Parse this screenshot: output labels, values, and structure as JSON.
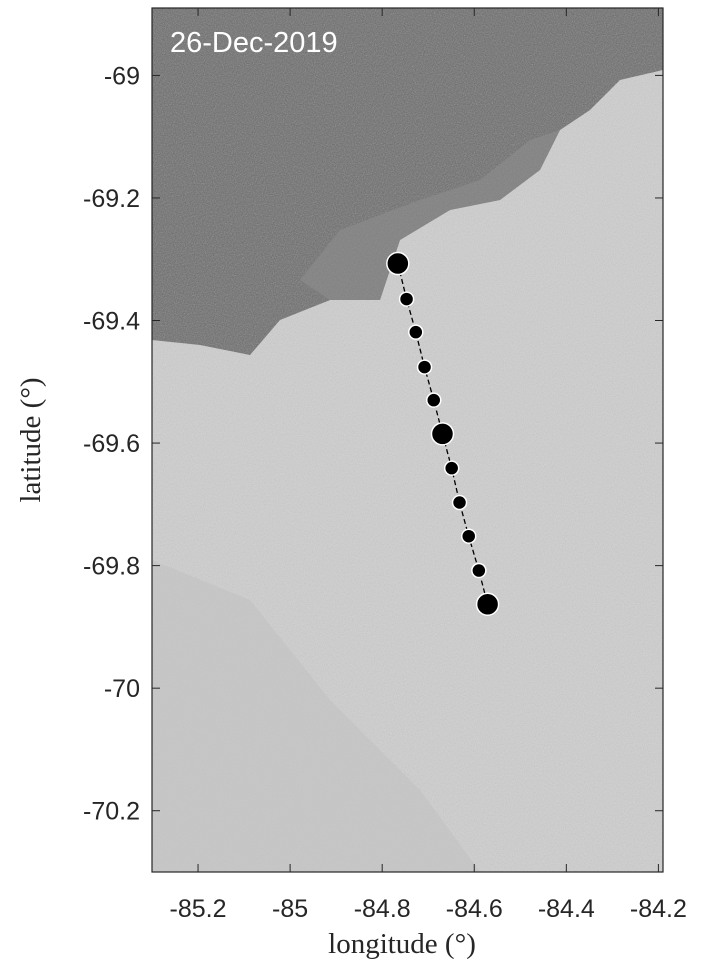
{
  "chart_data": {
    "type": "line",
    "annotation": "26-Dec-2019",
    "x_label": "longitude (°)",
    "y_label": "latitude (°)",
    "xlim": [
      -85.3,
      -84.19
    ],
    "ylim": [
      -70.3,
      -68.89
    ],
    "xticks": [
      -85.2,
      -85,
      -84.8,
      -84.6,
      -84.4,
      -84.2
    ],
    "yticks": [
      -69,
      -69.2,
      -69.4,
      -69.6,
      -69.8,
      -70,
      -70.2
    ],
    "series": [
      {
        "color": "#000000",
        "marker_size": 7,
        "line": true,
        "x": [
          -84.766,
          -84.747,
          -84.727,
          -84.708,
          -84.688,
          -84.669,
          -84.649,
          -84.632,
          -84.612,
          -84.59,
          -84.571
        ],
        "y": [
          -69.307,
          -69.365,
          -69.419,
          -69.476,
          -69.53,
          -69.585,
          -69.641,
          -69.697,
          -69.752,
          -69.808,
          -69.863
        ]
      },
      {
        "color": "#000000",
        "marker_size": 11,
        "line": false,
        "x": [
          -84.766,
          -84.669,
          -84.571
        ],
        "y": [
          -69.307,
          -69.585,
          -69.863
        ]
      }
    ]
  }
}
